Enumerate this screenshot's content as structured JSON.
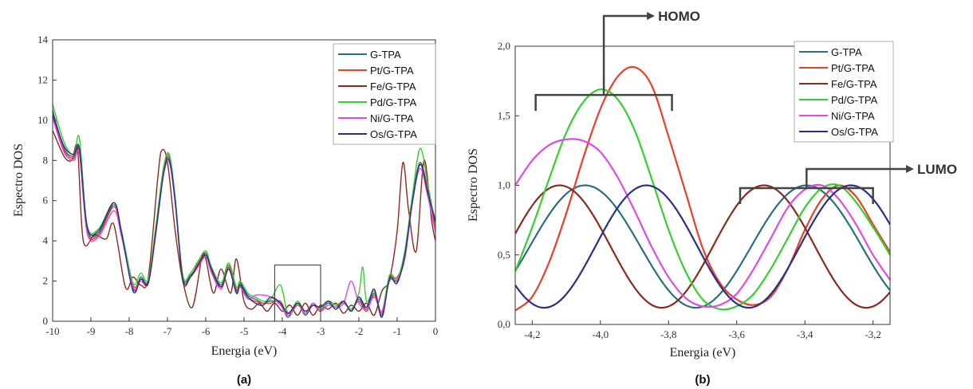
{
  "chart_data": [
    {
      "type": "line",
      "panel_label": "(a)",
      "xlabel": "Energia (eV)",
      "ylabel": "Espectro DOS",
      "xlim": [
        -10,
        0
      ],
      "ylim": [
        0,
        14
      ],
      "xticks": [
        -10,
        -9,
        -8,
        -7,
        -6,
        -5,
        -4,
        -3,
        -2,
        -1,
        0
      ],
      "xtick_labels": [
        "-10",
        "-9",
        "-8",
        "-7",
        "-6",
        "-5",
        "-4",
        "-3",
        "-2",
        "-1",
        "0"
      ],
      "yticks": [
        0,
        2,
        4,
        6,
        8,
        10,
        12,
        14
      ],
      "ytick_labels": [
        "0",
        "2",
        "4",
        "6",
        "8",
        "10",
        "12",
        "14"
      ],
      "grid": false,
      "legend_position": "top-right",
      "highlight_box": {
        "x": [
          -4.2,
          -3.0
        ],
        "y": [
          0,
          2.8
        ]
      },
      "series": [
        {
          "name": "G-TPA",
          "color": "#2a6f7f",
          "x": [
            -10,
            -9.7,
            -9.45,
            -9.3,
            -9.1,
            -8.8,
            -8.4,
            -8.2,
            -7.9,
            -7.7,
            -7.5,
            -7.3,
            -7.1,
            -6.95,
            -6.8,
            -6.6,
            -6.4,
            -6.2,
            -6.0,
            -5.85,
            -5.6,
            -5.4,
            -5.2,
            -5.1,
            -4.9,
            -4.7,
            -4.5,
            -4.3,
            -4.05,
            -3.85,
            -3.6,
            -3.4,
            -3.2,
            -3.0,
            -2.8,
            -2.6,
            -2.4,
            -2.2,
            -2.0,
            -1.8,
            -1.6,
            -1.4,
            -1.2,
            -1.0,
            -0.8,
            -0.6,
            -0.4,
            -0.2,
            0
          ],
          "values": [
            10.5,
            8.6,
            8.2,
            8.5,
            4.6,
            4.4,
            5.8,
            4.4,
            1.6,
            2.2,
            2.0,
            4.6,
            7.5,
            8.1,
            6.0,
            2.2,
            2.3,
            2.8,
            3.4,
            2.6,
            1.8,
            2.7,
            1.5,
            1.9,
            1.3,
            1.1,
            0.9,
            1.0,
            0.9,
            0.2,
            0.9,
            0.3,
            0.8,
            0.6,
            0.9,
            0.7,
            1.0,
            0.5,
            1.1,
            0.6,
            1.4,
            0.3,
            2.2,
            2.0,
            3.4,
            6.1,
            7.9,
            6.5,
            5.0
          ]
        },
        {
          "name": "Pt/G-TPA",
          "color": "#e8402a",
          "x": [
            -10,
            -9.7,
            -9.45,
            -9.3,
            -9.1,
            -8.8,
            -8.4,
            -8.2,
            -7.9,
            -7.7,
            -7.5,
            -7.3,
            -7.1,
            -6.95,
            -6.8,
            -6.6,
            -6.4,
            -6.2,
            -6.0,
            -5.85,
            -5.6,
            -5.4,
            -5.2,
            -5.1,
            -4.9,
            -4.7,
            -4.5,
            -4.3,
            -4.05,
            -3.85,
            -3.6,
            -3.4,
            -3.2,
            -3.0,
            -2.8,
            -2.6,
            -2.4,
            -2.2,
            -2.0,
            -1.8,
            -1.6,
            -1.4,
            -1.2,
            -1.0,
            -0.8,
            -0.6,
            -0.4,
            -0.2,
            0
          ],
          "values": [
            10.2,
            8.5,
            8.1,
            8.4,
            4.5,
            4.3,
            5.7,
            4.3,
            1.8,
            2.1,
            2.0,
            4.5,
            7.6,
            8.2,
            6.1,
            2.0,
            2.2,
            2.9,
            3.3,
            2.5,
            1.7,
            2.8,
            1.6,
            1.8,
            1.2,
            1.0,
            0.9,
            0.9,
            1.0,
            0.3,
            0.8,
            0.4,
            0.8,
            0.5,
            1.0,
            0.8,
            0.9,
            0.6,
            1.0,
            0.5,
            1.3,
            0.4,
            2.1,
            2.2,
            3.2,
            6.0,
            7.8,
            6.6,
            4.6
          ]
        },
        {
          "name": "Fe/G-TPA",
          "color": "#8b2a1f",
          "x": [
            -10,
            -9.7,
            -9.5,
            -9.35,
            -9.2,
            -8.9,
            -8.6,
            -8.4,
            -8.1,
            -7.9,
            -7.7,
            -7.5,
            -7.25,
            -7.15,
            -7.0,
            -6.8,
            -6.6,
            -6.35,
            -6.1,
            -6.0,
            -5.8,
            -5.6,
            -5.35,
            -5.2,
            -5.0,
            -4.8,
            -4.6,
            -4.4,
            -4.2,
            -4.0,
            -3.8,
            -3.6,
            -3.4,
            -3.2,
            -3.0,
            -2.8,
            -2.6,
            -2.4,
            -2.2,
            -2.0,
            -1.8,
            -1.6,
            -1.4,
            -1.2,
            -1.0,
            -0.85,
            -0.7,
            -0.5,
            -0.3,
            -0.1,
            0
          ],
          "values": [
            9.5,
            8.2,
            8.0,
            8.6,
            4.0,
            4.3,
            4.1,
            4.8,
            1.7,
            2.2,
            1.8,
            2.2,
            7.2,
            8.5,
            7.9,
            4.5,
            2.0,
            0.7,
            3.2,
            3.1,
            1.4,
            2.6,
            1.4,
            3.1,
            1.0,
            0.6,
            0.9,
            0.5,
            0.9,
            0.5,
            0.8,
            0.3,
            0.9,
            0.3,
            0.8,
            0.6,
            0.9,
            0.4,
            0.8,
            0.5,
            0.9,
            0.3,
            1.5,
            2.1,
            4.5,
            7.9,
            5.5,
            3.5,
            8.0,
            5.0,
            4.0
          ]
        },
        {
          "name": "Pd/G-TPA",
          "color": "#32d12e",
          "x": [
            -10,
            -9.7,
            -9.45,
            -9.3,
            -9.1,
            -8.8,
            -8.4,
            -8.2,
            -7.9,
            -7.7,
            -7.5,
            -7.3,
            -7.1,
            -6.95,
            -6.8,
            -6.6,
            -6.4,
            -6.2,
            -6.0,
            -5.85,
            -5.6,
            -5.4,
            -5.2,
            -5.1,
            -4.9,
            -4.7,
            -4.5,
            -4.3,
            -4.05,
            -3.85,
            -3.6,
            -3.4,
            -3.2,
            -3.0,
            -2.8,
            -2.6,
            -2.4,
            -2.2,
            -2.0,
            -1.9,
            -1.8,
            -1.6,
            -1.4,
            -1.2,
            -1.0,
            -0.8,
            -0.6,
            -0.4,
            -0.2,
            0
          ],
          "values": [
            10.8,
            8.9,
            8.3,
            9.1,
            4.8,
            4.6,
            5.9,
            4.5,
            1.9,
            2.4,
            2.1,
            4.8,
            7.7,
            8.3,
            6.2,
            2.3,
            2.4,
            3.0,
            3.5,
            2.7,
            1.9,
            2.9,
            1.7,
            2.0,
            1.4,
            1.2,
            1.0,
            1.1,
            1.8,
            0.4,
            1.0,
            0.4,
            0.9,
            0.6,
            1.0,
            0.8,
            1.0,
            0.6,
            1.4,
            2.7,
            1.0,
            1.5,
            0.5,
            2.3,
            2.1,
            3.5,
            6.3,
            8.6,
            6.8,
            4.8
          ]
        },
        {
          "name": "Ni/G-TPA",
          "color": "#e04ae6",
          "x": [
            -10,
            -9.7,
            -9.45,
            -9.3,
            -9.1,
            -8.8,
            -8.4,
            -8.2,
            -7.9,
            -7.7,
            -7.5,
            -7.3,
            -7.1,
            -6.95,
            -6.8,
            -6.6,
            -6.4,
            -6.2,
            -6.0,
            -5.85,
            -5.6,
            -5.4,
            -5.2,
            -5.1,
            -4.9,
            -4.7,
            -4.5,
            -4.3,
            -4.05,
            -3.85,
            -3.6,
            -3.4,
            -3.2,
            -3.0,
            -2.8,
            -2.6,
            -2.4,
            -2.2,
            -2.0,
            -1.8,
            -1.6,
            -1.4,
            -1.2,
            -1.0,
            -0.8,
            -0.6,
            -0.4,
            -0.2,
            0
          ],
          "values": [
            10.1,
            8.4,
            8.0,
            8.3,
            4.4,
            4.2,
            5.5,
            4.2,
            1.7,
            2.0,
            1.9,
            4.4,
            7.3,
            7.9,
            5.9,
            2.1,
            2.2,
            2.7,
            3.2,
            2.4,
            1.6,
            2.6,
            1.4,
            1.7,
            1.1,
            1.3,
            1.3,
            1.2,
            0.8,
            0.3,
            0.9,
            0.4,
            0.9,
            0.5,
            0.8,
            0.7,
            0.9,
            2.0,
            0.9,
            0.6,
            1.2,
            0.5,
            2.0,
            2.1,
            3.1,
            5.9,
            7.6,
            6.2,
            4.4
          ]
        },
        {
          "name": "Os/G-TPA",
          "color": "#2a2f8a",
          "x": [
            -10,
            -9.7,
            -9.45,
            -9.3,
            -9.1,
            -8.8,
            -8.4,
            -8.2,
            -7.9,
            -7.7,
            -7.5,
            -7.3,
            -7.1,
            -6.95,
            -6.8,
            -6.6,
            -6.4,
            -6.2,
            -6.0,
            -5.85,
            -5.6,
            -5.4,
            -5.2,
            -5.1,
            -4.9,
            -4.7,
            -4.5,
            -4.3,
            -4.05,
            -3.85,
            -3.6,
            -3.4,
            -3.2,
            -3.0,
            -2.8,
            -2.6,
            -2.4,
            -2.2,
            -2.0,
            -1.8,
            -1.6,
            -1.4,
            -1.2,
            -1.0,
            -0.8,
            -0.6,
            -0.4,
            -0.2,
            0
          ],
          "values": [
            10.3,
            8.7,
            8.3,
            8.6,
            4.7,
            4.5,
            5.9,
            4.4,
            1.5,
            2.1,
            1.9,
            4.5,
            7.4,
            8.0,
            6.0,
            2.1,
            2.2,
            2.8,
            3.3,
            2.6,
            1.7,
            2.6,
            1.4,
            1.8,
            1.2,
            0.9,
            0.8,
            1.2,
            0.9,
            0.4,
            0.9,
            0.5,
            0.8,
            0.7,
            1.0,
            0.6,
            1.0,
            0.5,
            1.2,
            0.7,
            1.6,
            0.2,
            2.1,
            1.9,
            3.3,
            6.0,
            7.8,
            6.4,
            4.9
          ]
        }
      ]
    },
    {
      "type": "line",
      "panel_label": "(b)",
      "xlabel": "Energia (eV)",
      "ylabel": "Espectro DOS",
      "xlim": [
        -4.25,
        -3.15
      ],
      "ylim": [
        0,
        2
      ],
      "xticks": [
        -4.2,
        -4.0,
        -3.8,
        -3.6,
        -3.4,
        -3.2
      ],
      "xtick_labels": [
        "-4,2",
        "-4,0",
        "-3,8",
        "-3,6",
        "-3,4",
        "-3,2"
      ],
      "yticks": [
        0,
        0.5,
        1.0,
        1.5,
        2.0
      ],
      "ytick_labels": [
        "0,0",
        "0,5",
        "1,0",
        "1,5",
        "2,0"
      ],
      "grid": false,
      "legend_position": "top-right",
      "annotations": [
        {
          "text": "HOMO",
          "bracket_x": [
            -4.19,
            -3.79
          ],
          "bracket_y": 1.65,
          "arrow": "right"
        },
        {
          "text": "LUMO",
          "bracket_x": [
            -3.59,
            -3.2
          ],
          "bracket_y": 0.98,
          "arrow": "right"
        }
      ],
      "series": [
        {
          "name": "G-TPA",
          "color": "#2a6f7f",
          "curve": "sine",
          "x_start": -4.25,
          "x_end": -3.15,
          "peaks": [
            -4.045,
            -3.395
          ],
          "peak_value": 1.0,
          "trough_value": 0.12
        },
        {
          "name": "Pt/G-TPA",
          "color": "#e8402a",
          "x": [
            -4.25,
            -4.2,
            -4.15,
            -4.1,
            -4.05,
            -4.0,
            -3.95,
            -3.9,
            -3.85,
            -3.8,
            -3.75,
            -3.7,
            -3.65,
            -3.6,
            -3.55,
            -3.5,
            -3.45,
            -3.4,
            -3.35,
            -3.3,
            -3.25,
            -3.2,
            -3.15
          ],
          "values": [
            0.1,
            0.2,
            0.45,
            0.8,
            1.2,
            1.55,
            1.78,
            1.85,
            1.72,
            1.35,
            0.95,
            0.55,
            0.3,
            0.18,
            0.14,
            0.2,
            0.4,
            0.68,
            0.9,
            1.0,
            0.92,
            0.72,
            0.52
          ]
        },
        {
          "name": "Fe/G-TPA",
          "color": "#8b2a1f",
          "curve": "sine",
          "x_start": -4.25,
          "x_end": -3.15,
          "peaks": [
            -4.12,
            -3.52
          ],
          "peak_value": 1.0,
          "trough_value": 0.12
        },
        {
          "name": "Pd/G-TPA",
          "color": "#32d12e",
          "x": [
            -4.25,
            -4.2,
            -4.15,
            -4.1,
            -4.05,
            -4.0,
            -3.95,
            -3.9,
            -3.85,
            -3.8,
            -3.75,
            -3.7,
            -3.65,
            -3.6,
            -3.55,
            -3.5,
            -3.45,
            -3.4,
            -3.35,
            -3.3,
            -3.25,
            -3.2,
            -3.15
          ],
          "values": [
            0.38,
            0.7,
            1.05,
            1.38,
            1.6,
            1.69,
            1.62,
            1.4,
            1.05,
            0.68,
            0.38,
            0.18,
            0.11,
            0.13,
            0.22,
            0.4,
            0.62,
            0.84,
            0.98,
            1.0,
            0.88,
            0.7,
            0.5
          ]
        },
        {
          "name": "Ni/G-TPA",
          "color": "#e04ae6",
          "x": [
            -4.25,
            -4.2,
            -4.15,
            -4.1,
            -4.05,
            -4.0,
            -3.95,
            -3.9,
            -3.85,
            -3.8,
            -3.75,
            -3.7,
            -3.65,
            -3.6,
            -3.55,
            -3.5,
            -3.45,
            -3.4,
            -3.35,
            -3.3,
            -3.25,
            -3.2,
            -3.15
          ],
          "values": [
            1.0,
            1.18,
            1.29,
            1.33,
            1.32,
            1.24,
            1.06,
            0.82,
            0.56,
            0.34,
            0.19,
            0.13,
            0.14,
            0.22,
            0.4,
            0.62,
            0.84,
            0.97,
            1.0,
            0.9,
            0.72,
            0.5,
            0.32
          ]
        },
        {
          "name": "Os/G-TPA",
          "color": "#2a2f8a",
          "curve": "sine",
          "x_start": -4.25,
          "x_end": -3.15,
          "peaks": [
            -3.865,
            -3.265
          ],
          "peak_value": 1.0,
          "trough_value": 0.12
        }
      ]
    }
  ]
}
